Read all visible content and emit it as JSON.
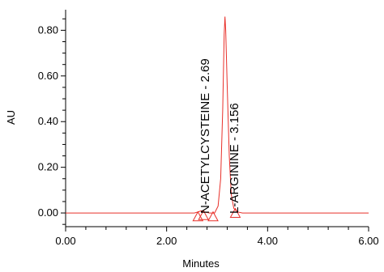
{
  "chart_data": {
    "type": "line",
    "xlabel": "Minutes",
    "ylabel": "AU",
    "xlim": [
      0.0,
      6.0
    ],
    "ylim": [
      -0.06,
      0.89
    ],
    "x_ticks": [
      "0.00",
      "2.00",
      "4.00",
      "6.00"
    ],
    "x_tick_values": [
      0,
      2,
      4,
      6
    ],
    "y_ticks": [
      "0.00",
      "0.20",
      "0.40",
      "0.60",
      "0.80"
    ],
    "y_tick_values": [
      0.0,
      0.2,
      0.4,
      0.6,
      0.8
    ],
    "series_color": "#e8302a",
    "trace": {
      "x": [
        0.0,
        2.4,
        2.55,
        2.62,
        2.69,
        2.76,
        2.85,
        2.95,
        3.02,
        3.07,
        3.11,
        3.14,
        3.156,
        3.17,
        3.2,
        3.24,
        3.28,
        3.33,
        3.4,
        3.5,
        4.0,
        5.0,
        6.0
      ],
      "y": [
        0.0,
        0.0,
        0.0,
        0.004,
        0.01,
        0.004,
        0.0,
        0.0,
        0.03,
        0.15,
        0.45,
        0.78,
        0.86,
        0.8,
        0.55,
        0.25,
        0.08,
        0.02,
        0.005,
        0.0,
        0.0,
        0.0,
        0.0
      ]
    },
    "peaks": [
      {
        "label": "N-ACETYLCYSTEINE - 2.69",
        "x": 2.69
      },
      {
        "label": "L-ARGININE - 3.156",
        "x": 3.156
      }
    ],
    "markers": [
      {
        "x": 2.62,
        "y": -0.02
      },
      {
        "x": 2.73,
        "y": -0.015
      },
      {
        "x": 2.92,
        "y": -0.02
      },
      {
        "x": 3.36,
        "y": -0.005
      }
    ]
  }
}
